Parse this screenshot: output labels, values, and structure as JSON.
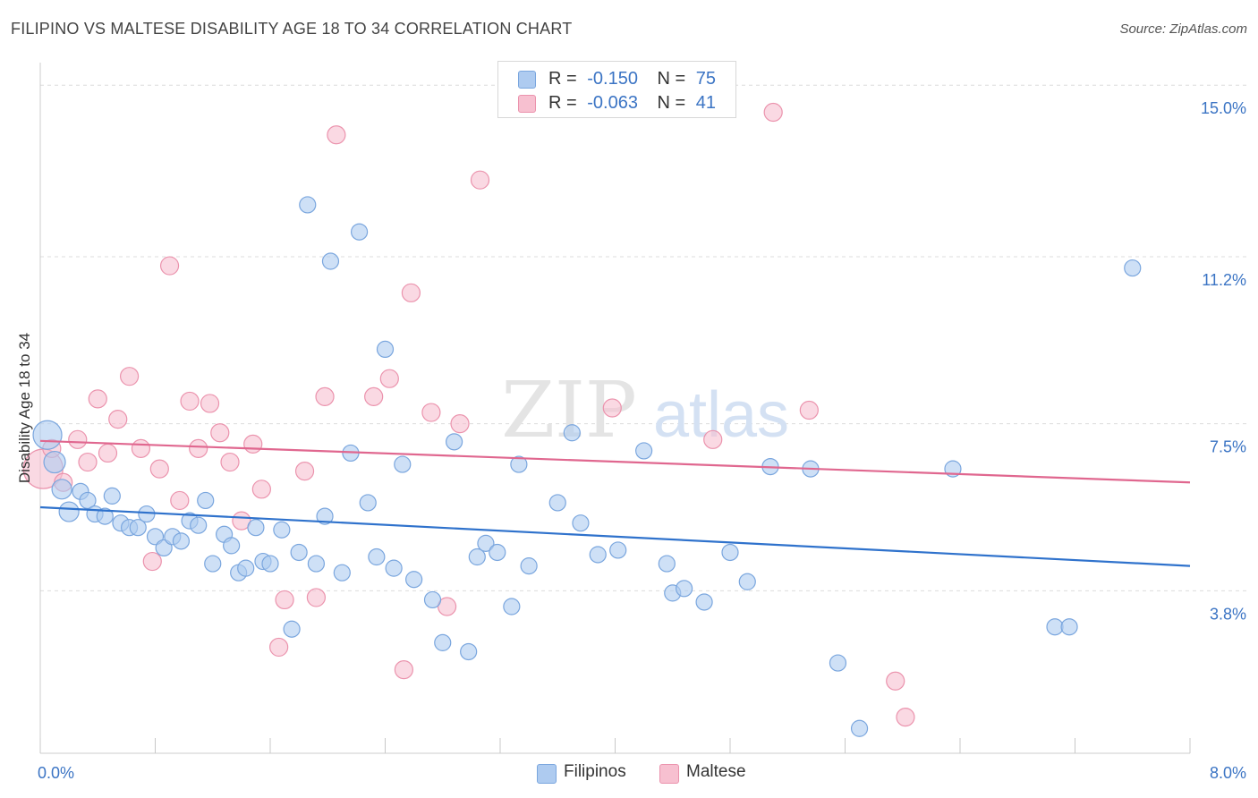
{
  "header": {
    "title": "FILIPINO VS MALTESE DISABILITY AGE 18 TO 34 CORRELATION CHART",
    "source": "Source: ZipAtlas.com"
  },
  "legend": {
    "filipino": {
      "r_label": "R =",
      "r_value": "-0.150",
      "n_label": "N =",
      "n_value": "75"
    },
    "maltese": {
      "r_label": "R =",
      "r_value": "-0.063",
      "n_label": "N =",
      "n_value": "41"
    }
  },
  "bottom_legend": {
    "filipino": "Filipinos",
    "maltese": "Maltese"
  },
  "watermark": {
    "zip": "ZIP",
    "atlas": "atlas"
  },
  "colors": {
    "filipino_fill": "#aecbf0",
    "filipino_stroke": "#7aa6de",
    "filipino_line": "#2f72cc",
    "maltese_fill": "#f7c0d0",
    "maltese_stroke": "#eb93ad",
    "maltese_line": "#e0678f",
    "axis_label": "#3b74c4"
  },
  "chart_data": {
    "type": "scatter",
    "title": "FILIPINO VS MALTESE DISABILITY AGE 18 TO 34 CORRELATION CHART",
    "xlabel": "",
    "ylabel": "Disability Age 18 to 34",
    "xlim": [
      0,
      8.0
    ],
    "ylim": [
      0.2,
      15.5
    ],
    "x_tick_labels": [
      "0.0%",
      "8.0%"
    ],
    "y_ticks": [
      3.8,
      7.5,
      11.2,
      15.0
    ],
    "y_tick_labels": [
      "3.8%",
      "7.5%",
      "11.2%",
      "15.0%"
    ],
    "grid": true,
    "legend_position": "top-center",
    "series": [
      {
        "name": "Filipinos",
        "r": -0.15,
        "n": 75,
        "trend": [
          [
            0.0,
            5.65
          ],
          [
            8.0,
            4.35
          ]
        ],
        "points": [
          [
            0.05,
            7.25,
            16
          ],
          [
            0.1,
            6.65,
            12
          ],
          [
            0.15,
            6.05,
            11
          ],
          [
            0.2,
            5.55,
            11
          ],
          [
            0.28,
            6.0,
            9
          ],
          [
            0.33,
            5.8,
            9
          ],
          [
            0.38,
            5.5,
            9
          ],
          [
            0.45,
            5.45,
            9
          ],
          [
            0.5,
            5.9,
            9
          ],
          [
            0.56,
            5.3,
            9
          ],
          [
            0.62,
            5.2,
            9
          ],
          [
            0.68,
            5.2,
            9
          ],
          [
            0.74,
            5.5,
            9
          ],
          [
            0.8,
            5.0,
            9
          ],
          [
            0.86,
            4.75,
            9
          ],
          [
            0.92,
            5.0,
            9
          ],
          [
            0.98,
            4.9,
            9
          ],
          [
            1.04,
            5.35,
            9
          ],
          [
            1.1,
            5.25,
            9
          ],
          [
            1.15,
            5.8,
            9
          ],
          [
            1.2,
            4.4,
            9
          ],
          [
            1.28,
            5.05,
            9
          ],
          [
            1.33,
            4.8,
            9
          ],
          [
            1.38,
            4.2,
            9
          ],
          [
            1.43,
            4.3,
            9
          ],
          [
            1.5,
            5.2,
            9
          ],
          [
            1.55,
            4.45,
            9
          ],
          [
            1.6,
            4.4,
            9
          ],
          [
            1.68,
            5.15,
            9
          ],
          [
            1.75,
            2.95,
            9
          ],
          [
            1.8,
            4.65,
            9
          ],
          [
            1.86,
            12.35,
            9
          ],
          [
            1.92,
            4.4,
            9
          ],
          [
            1.98,
            5.45,
            9
          ],
          [
            2.02,
            11.1,
            9
          ],
          [
            2.1,
            4.2,
            9
          ],
          [
            2.16,
            6.85,
            9
          ],
          [
            2.22,
            11.75,
            9
          ],
          [
            2.28,
            5.75,
            9
          ],
          [
            2.34,
            4.55,
            9
          ],
          [
            2.4,
            9.15,
            9
          ],
          [
            2.46,
            4.3,
            9
          ],
          [
            2.52,
            6.6,
            9
          ],
          [
            2.6,
            4.05,
            9
          ],
          [
            2.73,
            3.6,
            9
          ],
          [
            2.8,
            2.65,
            9
          ],
          [
            2.88,
            7.1,
            9
          ],
          [
            2.98,
            2.45,
            9
          ],
          [
            3.04,
            4.55,
            9
          ],
          [
            3.1,
            4.85,
            9
          ],
          [
            3.18,
            4.65,
            9
          ],
          [
            3.28,
            3.45,
            9
          ],
          [
            3.33,
            6.6,
            9
          ],
          [
            3.4,
            4.35,
            9
          ],
          [
            3.6,
            5.75,
            9
          ],
          [
            3.7,
            7.3,
            9
          ],
          [
            3.76,
            5.3,
            9
          ],
          [
            3.88,
            4.6,
            9
          ],
          [
            4.02,
            4.7,
            9
          ],
          [
            4.2,
            6.9,
            9
          ],
          [
            4.36,
            4.4,
            9
          ],
          [
            4.4,
            3.75,
            9
          ],
          [
            4.48,
            3.85,
            9
          ],
          [
            4.62,
            3.55,
            9
          ],
          [
            4.8,
            4.65,
            9
          ],
          [
            4.92,
            4.0,
            9
          ],
          [
            5.08,
            6.55,
            9
          ],
          [
            5.36,
            6.5,
            9
          ],
          [
            5.55,
            2.2,
            9
          ],
          [
            5.7,
            0.75,
            9
          ],
          [
            6.35,
            6.5,
            9
          ],
          [
            7.06,
            3.0,
            9
          ],
          [
            7.16,
            3.0,
            9
          ],
          [
            7.6,
            10.95,
            9
          ]
        ]
      },
      {
        "name": "Maltese",
        "r": -0.063,
        "n": 41,
        "trend": [
          [
            0.0,
            7.12
          ],
          [
            8.0,
            6.2
          ]
        ],
        "points": [
          [
            0.02,
            6.5,
            22
          ],
          [
            0.08,
            6.95,
            10
          ],
          [
            0.16,
            6.2,
            10
          ],
          [
            0.26,
            7.15,
            10
          ],
          [
            0.33,
            6.65,
            10
          ],
          [
            0.4,
            8.05,
            10
          ],
          [
            0.47,
            6.85,
            10
          ],
          [
            0.54,
            7.6,
            10
          ],
          [
            0.62,
            8.55,
            10
          ],
          [
            0.7,
            6.95,
            10
          ],
          [
            0.78,
            4.45,
            10
          ],
          [
            0.83,
            6.5,
            10
          ],
          [
            0.9,
            11.0,
            10
          ],
          [
            0.97,
            5.8,
            10
          ],
          [
            1.04,
            8.0,
            10
          ],
          [
            1.1,
            6.95,
            10
          ],
          [
            1.18,
            7.95,
            10
          ],
          [
            1.25,
            7.3,
            10
          ],
          [
            1.32,
            6.65,
            10
          ],
          [
            1.4,
            5.35,
            10
          ],
          [
            1.48,
            7.05,
            10
          ],
          [
            1.54,
            6.05,
            10
          ],
          [
            1.66,
            2.55,
            10
          ],
          [
            1.7,
            3.6,
            10
          ],
          [
            1.84,
            6.45,
            10
          ],
          [
            1.92,
            3.65,
            10
          ],
          [
            1.98,
            8.1,
            10
          ],
          [
            2.06,
            13.9,
            10
          ],
          [
            2.32,
            8.1,
            10
          ],
          [
            2.43,
            8.5,
            10
          ],
          [
            2.53,
            2.05,
            10
          ],
          [
            2.58,
            10.4,
            10
          ],
          [
            2.72,
            7.75,
            10
          ],
          [
            2.83,
            3.45,
            10
          ],
          [
            2.92,
            7.5,
            10
          ],
          [
            3.06,
            12.9,
            10
          ],
          [
            3.98,
            7.85,
            10
          ],
          [
            4.68,
            7.15,
            10
          ],
          [
            5.1,
            14.4,
            10
          ],
          [
            5.35,
            7.8,
            10
          ],
          [
            5.95,
            1.8,
            10
          ],
          [
            6.02,
            1.0,
            10
          ]
        ]
      }
    ]
  }
}
